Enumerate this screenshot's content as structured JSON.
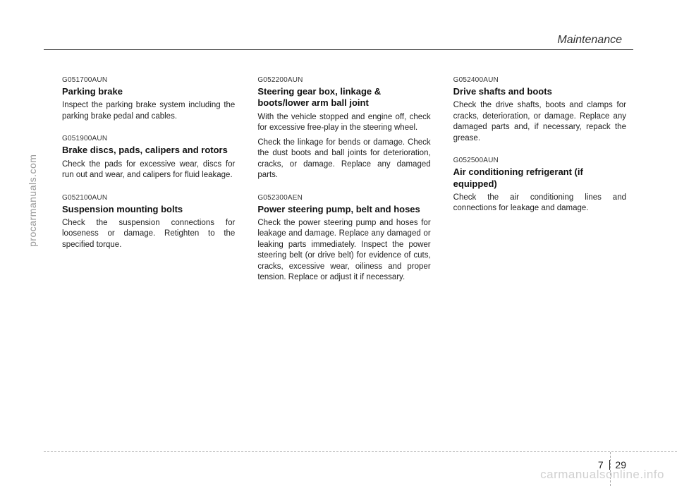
{
  "chapter": "Maintenance",
  "sidetext": "procarmanuals.com",
  "watermark": "carmanualsonline.info",
  "page": {
    "chapter_num": "7",
    "page_num": "29"
  },
  "columns": [
    {
      "sections": [
        {
          "code": "G051700AUN",
          "heading": "Parking brake",
          "paragraphs": [
            "Inspect the parking brake system including the parking brake pedal and cables."
          ]
        },
        {
          "code": "G051900AUN",
          "heading": "Brake discs, pads, calipers and rotors",
          "paragraphs": [
            "Check the pads for excessive wear, discs for run out and wear, and calipers for fluid leakage."
          ]
        },
        {
          "code": "G052100AUN",
          "heading": "Suspension mounting bolts",
          "paragraphs": [
            "Check the suspension connections for looseness or damage. Retighten to the specified torque."
          ]
        }
      ]
    },
    {
      "sections": [
        {
          "code": "G052200AUN",
          "heading": "Steering gear box, linkage & boots/lower arm ball joint",
          "paragraphs": [
            "With the vehicle stopped and engine off, check for excessive free-play in the steering wheel.",
            "Check the linkage for bends or damage. Check the dust boots and ball joints for deterioration, cracks, or damage. Replace any damaged parts."
          ]
        },
        {
          "code": "G052300AEN",
          "heading": "Power steering pump, belt and hoses",
          "paragraphs": [
            "Check the power steering pump and hoses for leakage and damage. Replace any damaged or leaking parts immediately. Inspect the power steering belt (or drive belt) for evidence of cuts, cracks, excessive wear, oiliness and proper tension. Replace or adjust it if necessary."
          ]
        }
      ]
    },
    {
      "sections": [
        {
          "code": "G052400AUN",
          "heading": "Drive shafts and boots",
          "paragraphs": [
            "Check the drive shafts, boots and clamps for cracks, deterioration, or damage. Replace any damaged parts and, if necessary, repack the grease."
          ]
        },
        {
          "code": "G052500AUN",
          "heading": "Air conditioning refrigerant (if equipped)",
          "paragraphs": [
            "Check the air conditioning lines and connections for leakage and damage."
          ]
        }
      ]
    }
  ]
}
